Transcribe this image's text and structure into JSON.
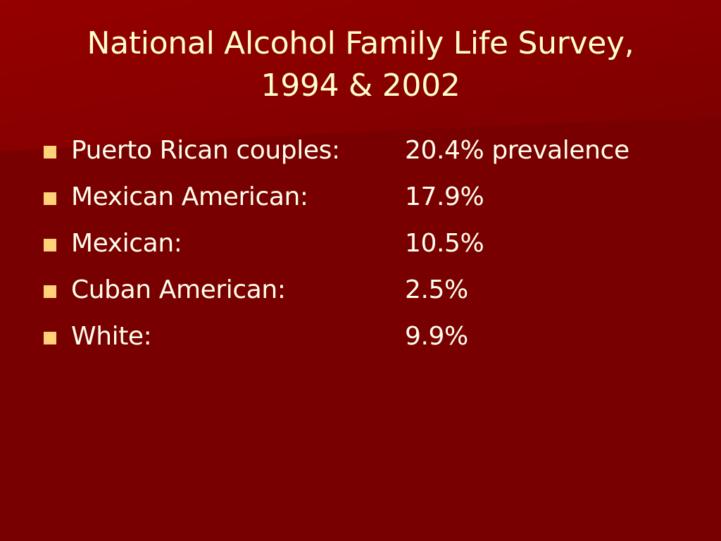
{
  "slide": {
    "title_lines": [
      "National Alcohol Family Life Survey,",
      "1994 & 2002"
    ],
    "bullets": [
      {
        "label": "Puerto Rican couples:",
        "value": "20.4% prevalence"
      },
      {
        "label": "Mexican American:",
        "value": "17.9%"
      },
      {
        "label": "Mexican:",
        "value": "10.5%"
      },
      {
        "label": "Cuban American:",
        "value": "2.5%"
      },
      {
        "label": "White:",
        "value": "9.9%"
      }
    ]
  },
  "colors": {
    "background": "#790000",
    "background_highlight": "#8a0000",
    "title_text": "#ffffcc",
    "body_text": "#ffffee",
    "bullet_marker": "#ffd27a"
  },
  "icons": {
    "bullet_marker": "square-bullet-icon"
  }
}
